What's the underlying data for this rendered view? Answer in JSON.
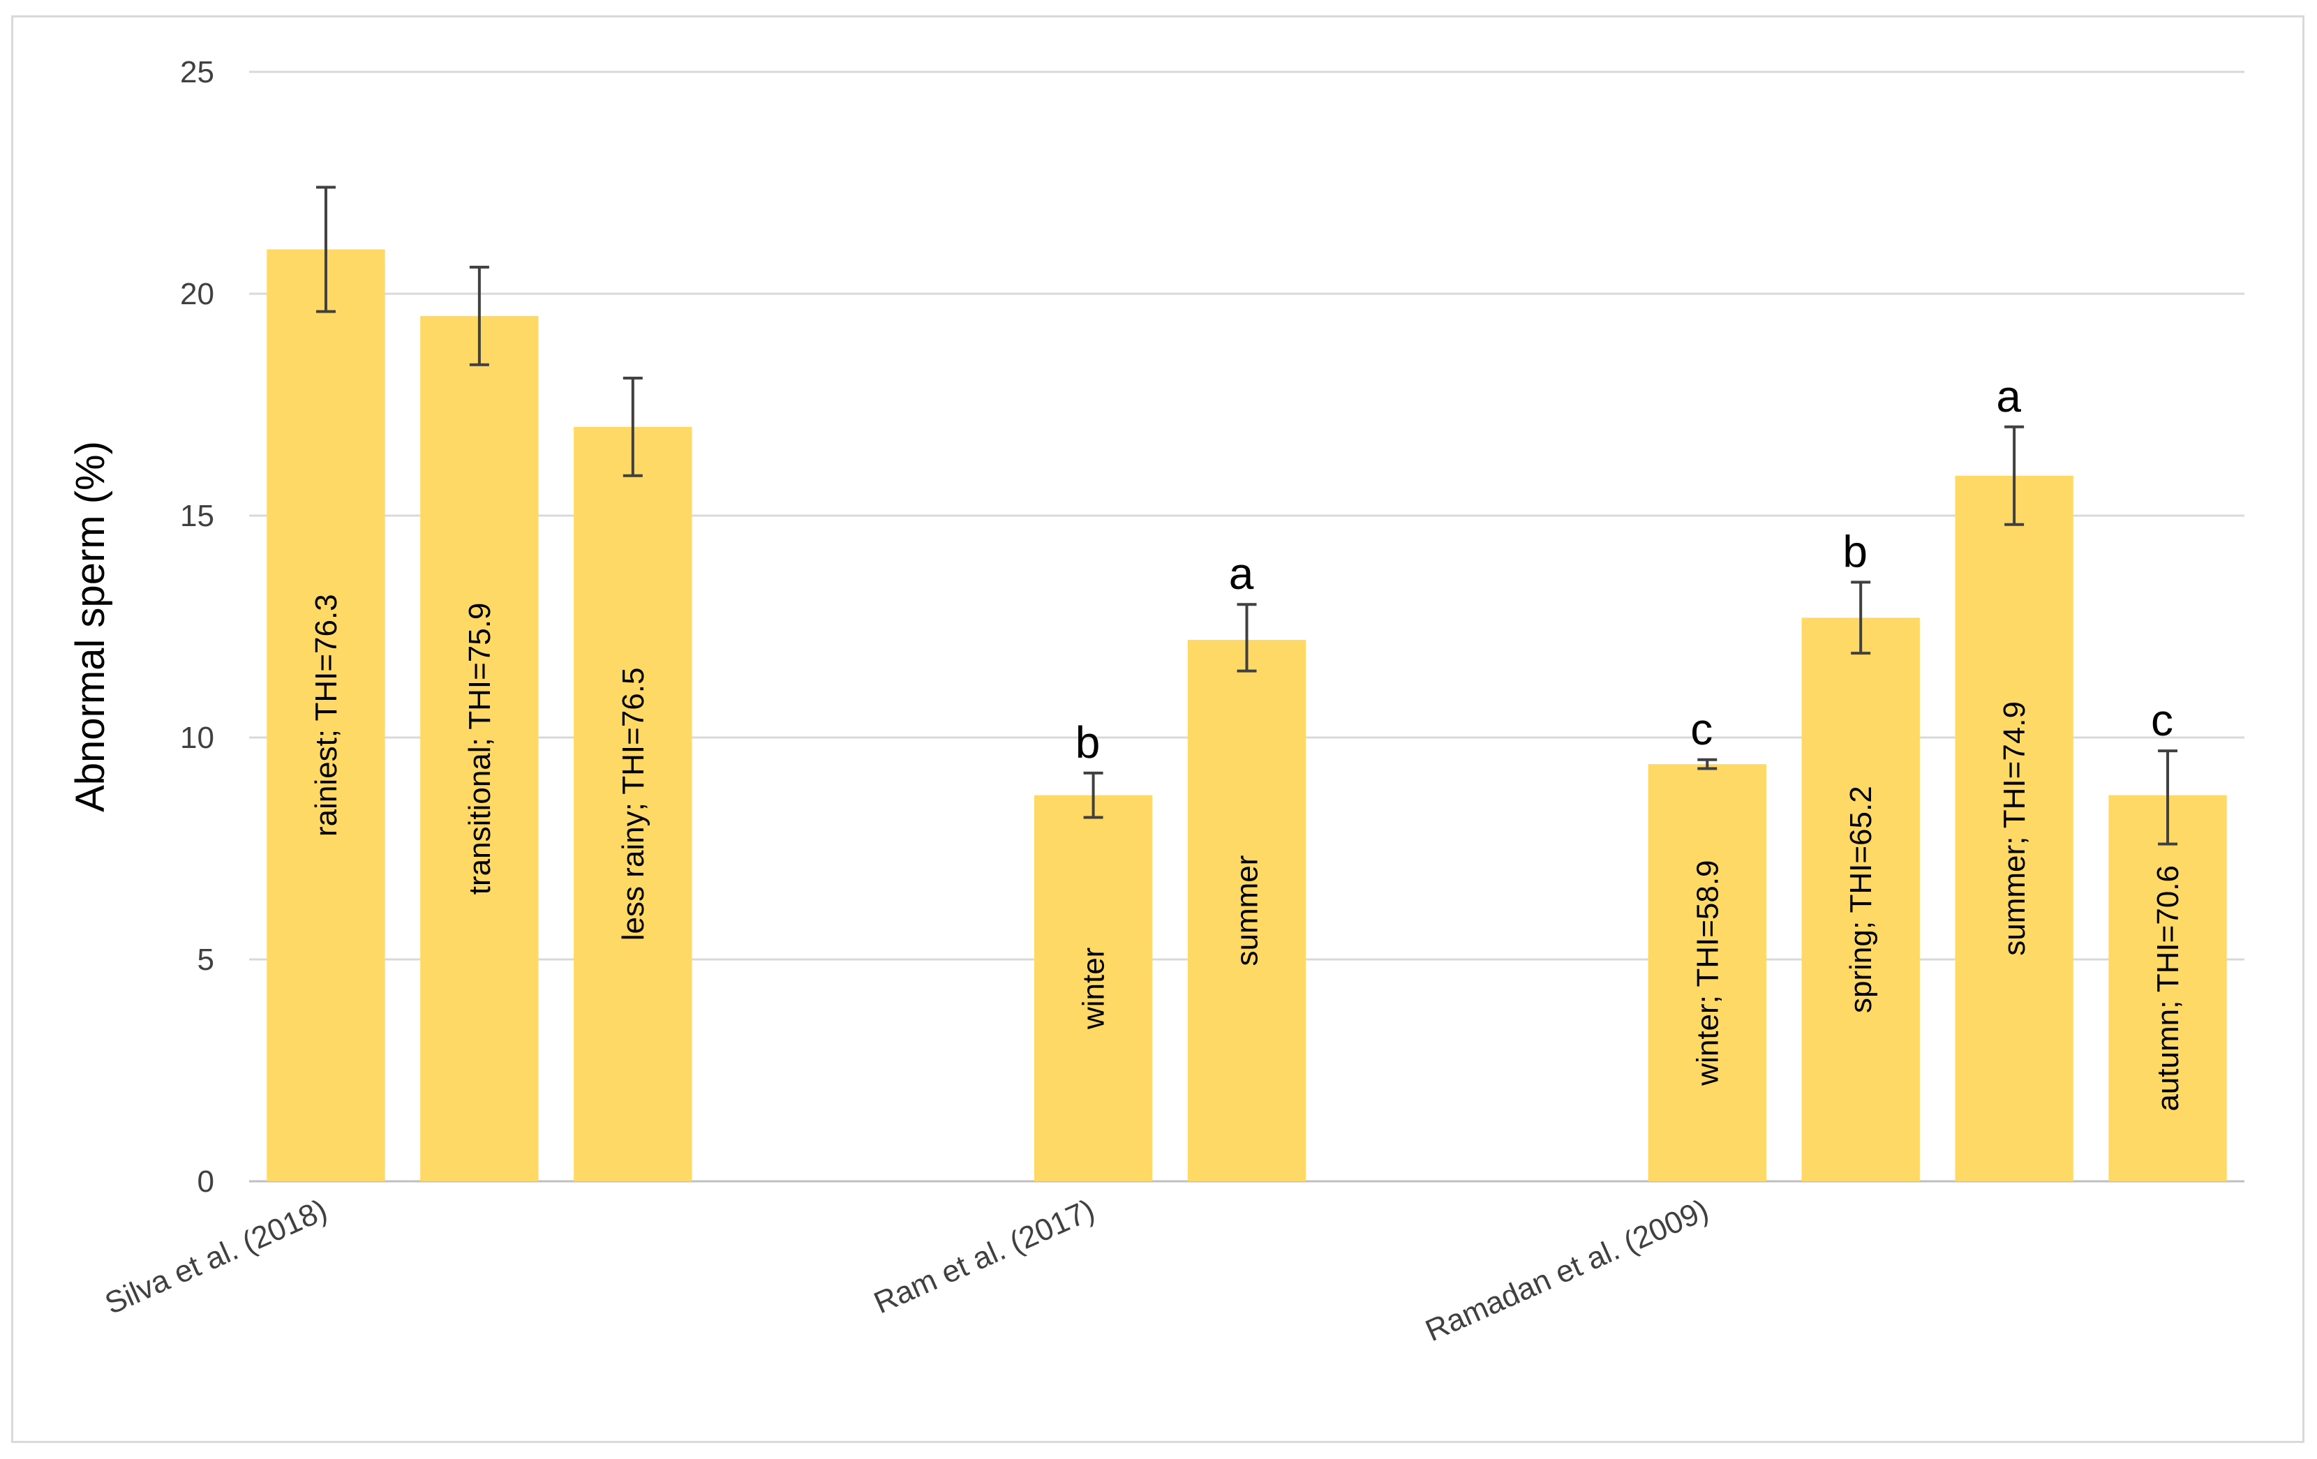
{
  "chart_data": {
    "type": "bar",
    "ylabel": "Abnormal sperm (%)",
    "ylim": [
      0,
      25
    ],
    "yticks": [
      0,
      5,
      10,
      15,
      20,
      25
    ],
    "grid": true,
    "colors": {
      "bar": "#ffd966",
      "grid": "#d9d9d9",
      "error": "#404040"
    },
    "groups": [
      {
        "label": "Silva et al. (2018)",
        "bars": [
          {
            "label": "rainiest; THI=76.3",
            "value": 21.0,
            "err_low": 19.6,
            "err_high": 22.4,
            "letter": ""
          },
          {
            "label": "transitional; THI=75.9",
            "value": 19.5,
            "err_low": 18.4,
            "err_high": 20.6,
            "letter": ""
          },
          {
            "label": "less rainy; THI=76.5",
            "value": 17.0,
            "err_low": 15.9,
            "err_high": 18.1,
            "letter": ""
          }
        ]
      },
      {
        "label": "Ram et al. (2017)",
        "bars": [
          {
            "label": "winter",
            "value": 8.7,
            "err_low": 8.2,
            "err_high": 9.2,
            "letter": "b"
          },
          {
            "label": "summer",
            "value": 12.2,
            "err_low": 11.5,
            "err_high": 13.0,
            "letter": "a"
          }
        ]
      },
      {
        "label": "Ramadan et al. (2009)",
        "bars": [
          {
            "label": "winter; THI=58.9",
            "value": 9.4,
            "err_low": 9.3,
            "err_high": 9.5,
            "letter": "c"
          },
          {
            "label": "spring; THI=65.2",
            "value": 12.7,
            "err_low": 11.9,
            "err_high": 13.5,
            "letter": "b"
          },
          {
            "label": "summer; THI=74.9",
            "value": 15.9,
            "err_low": 14.8,
            "err_high": 17.0,
            "letter": "a"
          },
          {
            "label": "autumn; THI=70.6",
            "value": 8.7,
            "err_low": 7.6,
            "err_high": 9.7,
            "letter": "c"
          }
        ]
      }
    ]
  }
}
